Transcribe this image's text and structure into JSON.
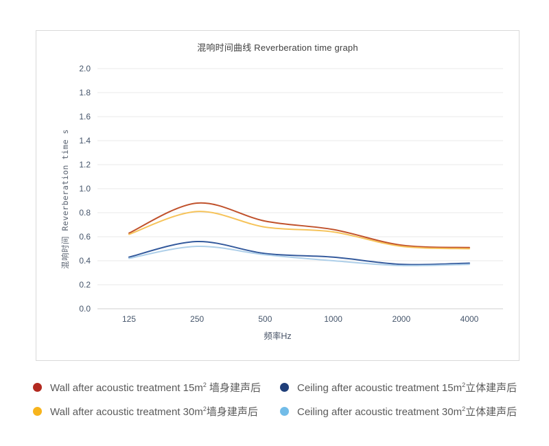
{
  "chart": {
    "title": "混响时间曲线 Reverberation time graph"
  },
  "chart_data": {
    "type": "line",
    "title": "混响时间曲线 Reverberation time graph",
    "xlabel": "频率Hz",
    "ylabel": "混响时间 Reverberation time s",
    "categories": [
      "125",
      "250",
      "500",
      "1000",
      "2000",
      "4000"
    ],
    "ylim": [
      0.0,
      2.0
    ],
    "ytick_step": 0.2,
    "grid": true,
    "legend_position": "bottom",
    "colors": {
      "grid_line": "#e9e9e9",
      "axis_line": "#cfcfcf",
      "tick_label": "#44546a",
      "title_text": "#3f3f3f",
      "legend_text": "#595959"
    },
    "series": [
      {
        "name_en": "Wall after acoustic treatment 15m",
        "sup": "2",
        "name_zh": " 墙身建声后",
        "color": "#c0512b",
        "marker_color": "#b32a20",
        "values": [
          0.63,
          0.88,
          0.73,
          0.66,
          0.53,
          0.51
        ]
      },
      {
        "name_en": "Wall after acoustic treatment 30m",
        "sup": "2",
        "name_zh": "墙身建声后",
        "color": "#f6c35a",
        "marker_color": "#f7b41c",
        "values": [
          0.62,
          0.81,
          0.68,
          0.64,
          0.52,
          0.5
        ]
      },
      {
        "name_en": "Ceiling after acoustic treatment 15m",
        "sup": "2",
        "name_zh": "立体建声后",
        "color": "#33599c",
        "marker_color": "#1f3e79",
        "values": [
          0.43,
          0.56,
          0.46,
          0.43,
          0.37,
          0.38
        ]
      },
      {
        "name_en": "Ceiling after acoustic treatment 30m",
        "sup": "2",
        "name_zh": "立体建声后",
        "color": "#aecfe9",
        "marker_color": "#72bce8",
        "values": [
          0.42,
          0.52,
          0.45,
          0.4,
          0.36,
          0.37
        ]
      }
    ]
  }
}
